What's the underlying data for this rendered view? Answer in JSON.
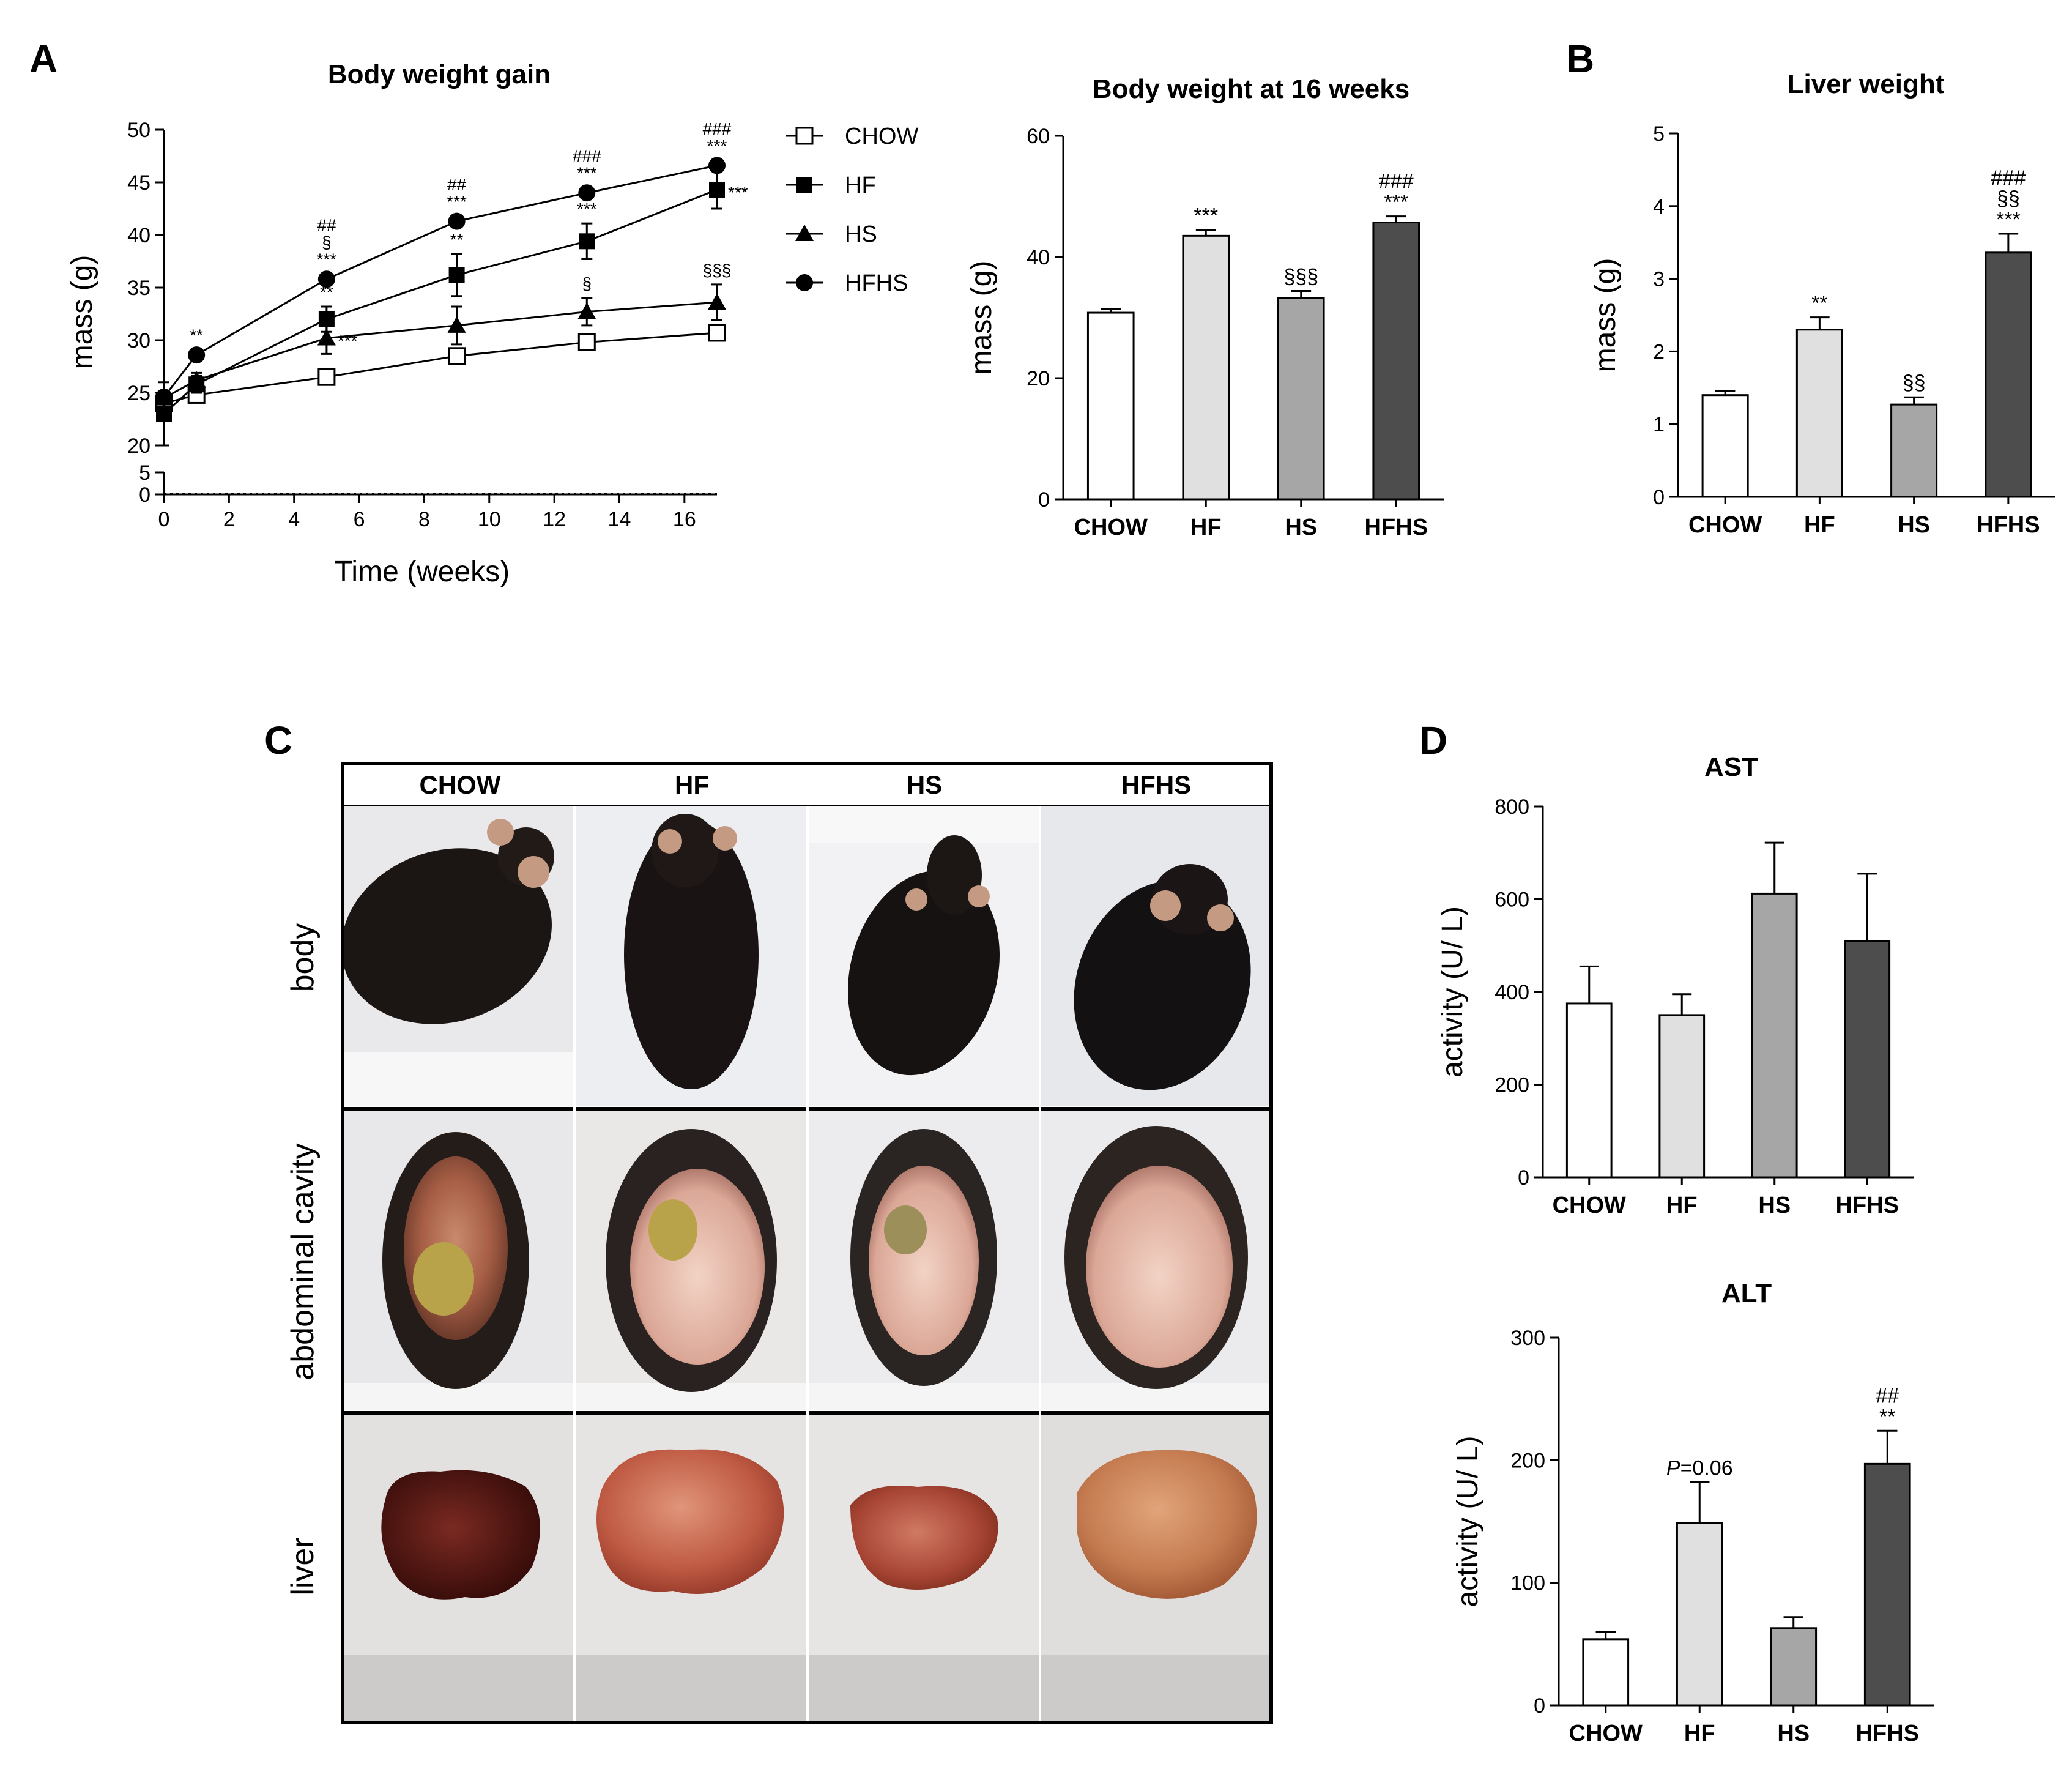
{
  "panel_letters": {
    "a": "A",
    "b": "B",
    "c": "C",
    "d": "D"
  },
  "colors": {
    "CHOW": "#ffffff",
    "HF": "#e0e0e0",
    "HS": "#a6a6a6",
    "HFHS": "#4d4d4d"
  },
  "chart_data": [
    {
      "id": "body-weight-gain",
      "type": "line",
      "title": "Body weight gain",
      "xlabel": "Time (weeks)",
      "ylabel": "mass (g)",
      "xlim": [
        0,
        17
      ],
      "ylim": [
        20,
        50
      ],
      "axis_break": {
        "lower_ticks": [
          0,
          5
        ],
        "upper_start": 20
      },
      "xticks": [
        0,
        2,
        4,
        6,
        8,
        10,
        12,
        14,
        16
      ],
      "yticks": [
        20,
        25,
        30,
        35,
        40,
        45,
        50
      ],
      "series": [
        {
          "name": "CHOW",
          "marker": "open-square",
          "x": [
            0,
            1,
            5,
            9,
            13,
            17
          ],
          "y": [
            24.0,
            24.8,
            26.5,
            28.5,
            29.8,
            30.7
          ],
          "err": [
            0.5,
            0.5,
            0.4,
            0.6,
            0.5,
            0.6
          ]
        },
        {
          "name": "HF",
          "marker": "filled-square",
          "x": [
            0,
            1,
            5,
            9,
            13,
            17
          ],
          "y": [
            23.0,
            25.8,
            32.0,
            36.2,
            39.4,
            44.3
          ],
          "err": [
            3.0,
            0.8,
            1.2,
            2.0,
            1.7,
            1.8
          ]
        },
        {
          "name": "HS",
          "marker": "filled-triangle",
          "x": [
            0,
            1,
            5,
            9,
            13,
            17
          ],
          "y": [
            24.5,
            26.2,
            30.2,
            31.4,
            32.7,
            33.6
          ],
          "err": [
            0.6,
            0.7,
            1.5,
            1.8,
            1.3,
            1.7
          ]
        },
        {
          "name": "HFHS",
          "marker": "filled-circle",
          "x": [
            0,
            1,
            5,
            9,
            13,
            17
          ],
          "y": [
            24.6,
            28.6,
            35.8,
            41.3,
            44.0,
            46.6
          ],
          "err": [
            0.5,
            0.5,
            0.5,
            0.5,
            0.5,
            0.5
          ]
        }
      ],
      "legend": {
        "placement": "right",
        "labels": [
          "CHOW",
          "HF",
          "HS",
          "HFHS"
        ]
      },
      "annotations": [
        {
          "x": 1,
          "lines": [
            "**"
          ],
          "above": "HFHS"
        },
        {
          "x": 5,
          "lines": [
            "##",
            "§",
            "***"
          ],
          "above": "HFHS"
        },
        {
          "x": 5,
          "lines": [
            "**"
          ],
          "above": "HF"
        },
        {
          "x": 5,
          "lines": [
            "***"
          ],
          "beside": "HS"
        },
        {
          "x": 9,
          "lines": [
            "##",
            "***"
          ],
          "above": "HFHS"
        },
        {
          "x": 9,
          "lines": [
            "**"
          ],
          "above": "HF"
        },
        {
          "x": 13,
          "lines": [
            "###",
            "***"
          ],
          "above": "HFHS"
        },
        {
          "x": 13,
          "lines": [
            "***"
          ],
          "above": "HF"
        },
        {
          "x": 13,
          "lines": [
            "§"
          ],
          "above": "HS"
        },
        {
          "x": 17,
          "lines": [
            "###",
            "***"
          ],
          "above": "HFHS"
        },
        {
          "x": 17,
          "lines": [
            "***"
          ],
          "beside": "HF"
        },
        {
          "x": 17,
          "lines": [
            "§§§"
          ],
          "above": "HS"
        }
      ]
    },
    {
      "id": "body-weight-16w",
      "type": "bar",
      "title": "Body weight at 16 weeks",
      "ylabel": "mass (g)",
      "categories": [
        "CHOW",
        "HF",
        "HS",
        "HFHS"
      ],
      "values": [
        30.8,
        43.5,
        33.2,
        45.7
      ],
      "err": [
        0.6,
        1.0,
        1.2,
        1.0
      ],
      "ylim": [
        0,
        60
      ],
      "yticks": [
        0,
        20,
        40,
        60
      ],
      "annotations": [
        [],
        [
          "***"
        ],
        [
          "§§§"
        ],
        [
          "###",
          "***"
        ]
      ]
    },
    {
      "id": "liver-weight",
      "type": "bar",
      "title": "Liver weight",
      "ylabel": "mass (g)",
      "categories": [
        "CHOW",
        "HF",
        "HS",
        "HFHS"
      ],
      "values": [
        1.4,
        2.3,
        1.27,
        3.36
      ],
      "err": [
        0.06,
        0.17,
        0.1,
        0.26
      ],
      "ylim": [
        0,
        5
      ],
      "yticks": [
        0,
        1,
        2,
        3,
        4,
        5
      ],
      "annotations": [
        [],
        [
          "**"
        ],
        [
          "§§"
        ],
        [
          "###",
          "§§",
          "***"
        ]
      ]
    },
    {
      "id": "ast",
      "type": "bar",
      "title": "AST",
      "ylabel": "activity (U/ L)",
      "categories": [
        "CHOW",
        "HF",
        "HS",
        "HFHS"
      ],
      "values": [
        375,
        350,
        612,
        510
      ],
      "err": [
        80,
        45,
        110,
        145
      ],
      "ylim": [
        0,
        800
      ],
      "yticks": [
        0,
        200,
        400,
        600,
        800
      ],
      "annotations": [
        [],
        [],
        [],
        []
      ]
    },
    {
      "id": "alt",
      "type": "bar",
      "title": "ALT",
      "ylabel": "activity (U/ L)",
      "categories": [
        "CHOW",
        "HF",
        "HS",
        "HFHS"
      ],
      "values": [
        54,
        149,
        63,
        197
      ],
      "err": [
        6,
        33,
        9,
        27
      ],
      "ylim": [
        0,
        300
      ],
      "yticks": [
        0,
        100,
        200,
        300
      ],
      "annotations": [
        [],
        [
          "P=0.06"
        ],
        [],
        [
          "##",
          "**"
        ]
      ]
    }
  ],
  "photo_panel": {
    "columns": [
      "CHOW",
      "HF",
      "HS",
      "HFHS"
    ],
    "rows": [
      "body",
      "abdominal cavity",
      "liver"
    ]
  }
}
